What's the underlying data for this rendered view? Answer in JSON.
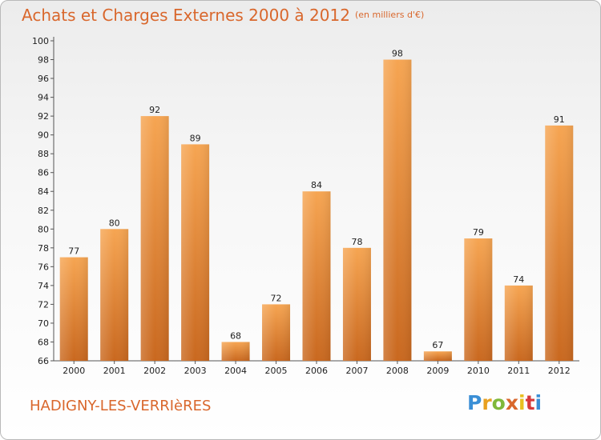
{
  "title": "Achats et Charges Externes 2000 à 2012",
  "subtitle": "(en milliers d'€)",
  "commune": "HADIGNY-LES-VERRIèRES",
  "logo": {
    "letters": [
      "P",
      "r",
      "o",
      "x",
      "i",
      "t",
      "i"
    ],
    "colors": [
      "#3a8fd6",
      "#e8a020",
      "#7fb83a",
      "#d9672c",
      "#e8c020",
      "#d63a3a",
      "#3a8fd6"
    ]
  },
  "chart_data": {
    "type": "bar",
    "title": "Achats et Charges Externes 2000 à 2012",
    "subtitle": "(en milliers d'€)",
    "categories": [
      "2000",
      "2001",
      "2002",
      "2003",
      "2004",
      "2005",
      "2006",
      "2007",
      "2008",
      "2009",
      "2010",
      "2011",
      "2012"
    ],
    "values": [
      77,
      80,
      92,
      89,
      68,
      72,
      84,
      78,
      98,
      67,
      79,
      74,
      91
    ],
    "ylim": [
      66,
      100
    ],
    "yticks": [
      66,
      68,
      70,
      72,
      74,
      76,
      78,
      80,
      82,
      84,
      86,
      88,
      90,
      92,
      94,
      96,
      98,
      100
    ],
    "bar_color": "#f29a45",
    "grid": false
  }
}
